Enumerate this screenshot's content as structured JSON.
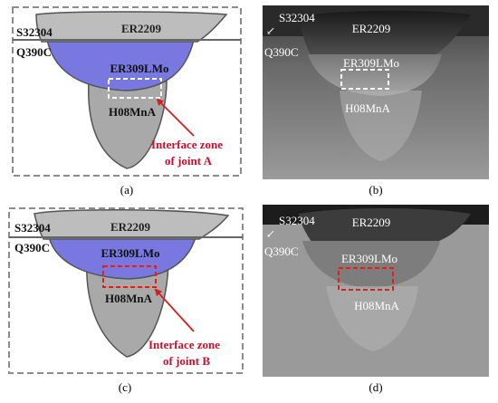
{
  "panels": {
    "a": {
      "caption": "(a)",
      "labels": {
        "base_top": "S32304",
        "base_bottom": "Q390C",
        "cap": "ER2209",
        "middle": "ER309LMo",
        "root": "H08MnA"
      },
      "annotation": [
        "Interface zone",
        "of joint A"
      ],
      "marker_color": "#ffffff"
    },
    "b": {
      "caption": "(b)",
      "labels": {
        "base_top": "S32304",
        "base_bottom": "Q390C",
        "cap": "ER2209",
        "middle": "ER309LMo",
        "root": "H08MnA"
      },
      "marker_color": "#ffffff"
    },
    "c": {
      "caption": "(c)",
      "labels": {
        "base_top": "S32304",
        "base_bottom": "Q390C",
        "cap": "ER2209",
        "middle": "ER309LMo",
        "root": "H08MnA"
      },
      "annotation": [
        "Interface zone",
        "of joint B"
      ],
      "marker_color": "#e0201b"
    },
    "d": {
      "caption": "(d)",
      "labels": {
        "base_top": "S32304",
        "base_bottom": "Q390C",
        "cap": "ER2209",
        "middle": "ER309LMo",
        "root": "H08MnA"
      },
      "marker_color": "#e0201b"
    }
  },
  "colors": {
    "cap_fill": "#bdbdbd",
    "middle_fill": "#7878e0",
    "root_fill": "#a9a9a9",
    "annotation_text": "#c8102e",
    "arrow": "#d31f1f",
    "frame": "#8c8c8c"
  }
}
